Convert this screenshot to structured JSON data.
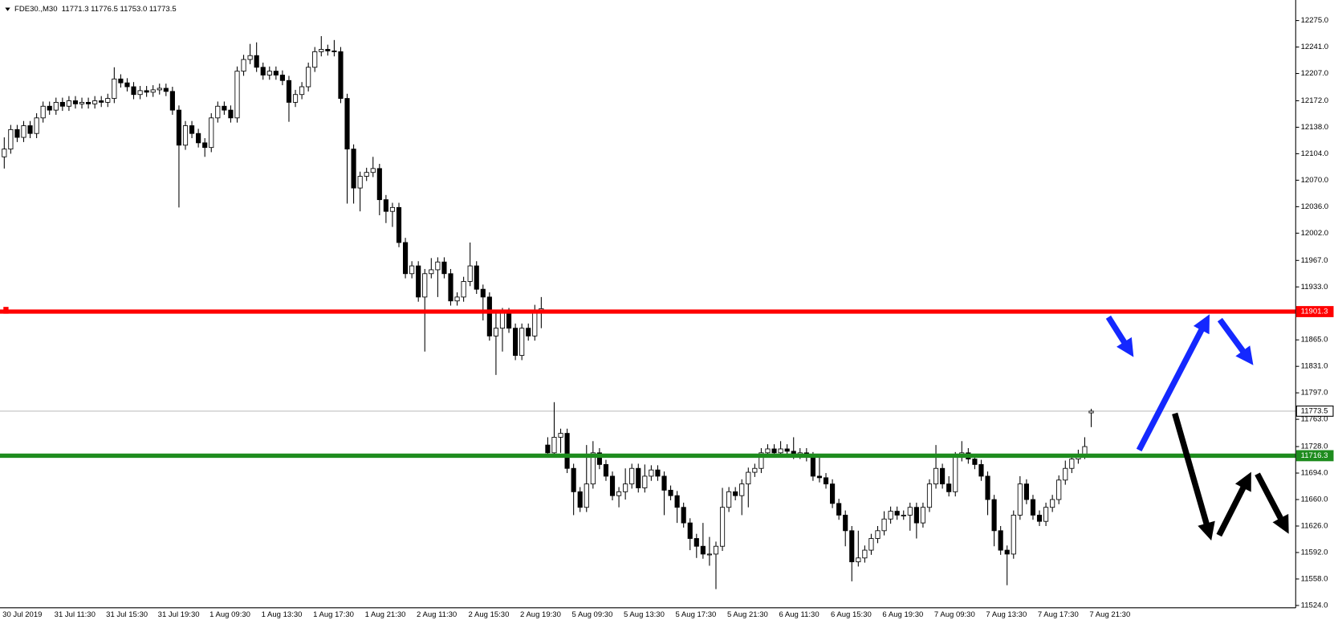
{
  "chart_data": {
    "type": "candlestick",
    "title": "FDE30.,M30  11771.3 11776.5 11753.0 11773.5",
    "up_color": "#ffffff",
    "down_color": "#000000",
    "ylim": [
      11521,
      12297
    ],
    "yticks": [
      {
        "value": 12275,
        "label": "12275.0"
      },
      {
        "value": 12241,
        "label": "12241.0"
      },
      {
        "value": 12207,
        "label": "12207.0"
      },
      {
        "value": 12172,
        "label": "12172.0"
      },
      {
        "value": 12138,
        "label": "12138.0"
      },
      {
        "value": 12104,
        "label": "12104.0"
      },
      {
        "value": 12070,
        "label": "12070.0"
      },
      {
        "value": 12036,
        "label": "12036.0"
      },
      {
        "value": 12002,
        "label": "12002.0"
      },
      {
        "value": 11967,
        "label": "11967.0"
      },
      {
        "value": 11933,
        "label": "11933.0"
      },
      {
        "value": 11865,
        "label": "11865.0"
      },
      {
        "value": 11831,
        "label": "11831.0"
      },
      {
        "value": 11797,
        "label": "11797.0"
      },
      {
        "value": 11763,
        "label": "11763.0"
      },
      {
        "value": 11728,
        "label": "11728.0"
      },
      {
        "value": 11694,
        "label": "11694.0"
      },
      {
        "value": 11660,
        "label": "11660.0"
      },
      {
        "value": 11626,
        "label": "11626.0"
      },
      {
        "value": 11592,
        "label": "11592.0"
      },
      {
        "value": 11558,
        "label": "11558.0"
      },
      {
        "value": 11524,
        "label": "11524.0"
      }
    ],
    "hlines": [
      {
        "value": 11773.5,
        "color": "#c0c0c0"
      },
      {
        "value": 11901.3,
        "color": "#ff0000"
      },
      {
        "value": 11716.3,
        "color": "#1e8c1e"
      }
    ],
    "categories": [
      "30 Jul 2019",
      null,
      null,
      null,
      null,
      null,
      null,
      null,
      "31 Jul 11:30",
      null,
      null,
      null,
      null,
      null,
      null,
      null,
      "31 Jul 15:30",
      null,
      null,
      null,
      null,
      null,
      null,
      null,
      "31 Jul 19:30",
      null,
      null,
      null,
      null,
      null,
      null,
      null,
      "1 Aug 09:30",
      null,
      null,
      null,
      null,
      null,
      null,
      null,
      "1 Aug 13:30",
      null,
      null,
      null,
      null,
      null,
      null,
      null,
      "1 Aug 17:30",
      null,
      null,
      null,
      null,
      null,
      null,
      null,
      "1 Aug 21:30",
      null,
      null,
      null,
      null,
      null,
      null,
      null,
      "2 Aug 11:30",
      null,
      null,
      null,
      null,
      null,
      null,
      null,
      "2 Aug 15:30",
      null,
      null,
      null,
      null,
      null,
      null,
      null,
      "2 Aug 19:30",
      null,
      null,
      null,
      null,
      null,
      null,
      null,
      "5 Aug 09:30",
      null,
      null,
      null,
      null,
      null,
      null,
      null,
      "5 Aug 13:30",
      null,
      null,
      null,
      null,
      null,
      null,
      null,
      "5 Aug 17:30",
      null,
      null,
      null,
      null,
      null,
      null,
      null,
      "5 Aug 21:30",
      null,
      null,
      null,
      null,
      null,
      null,
      null,
      "6 Aug 11:30",
      null,
      null,
      null,
      null,
      null,
      null,
      null,
      "6 Aug 15:30",
      null,
      null,
      null,
      null,
      null,
      null,
      null,
      "6 Aug 19:30",
      null,
      null,
      null,
      null,
      null,
      null,
      null,
      "7 Aug 09:30",
      null,
      null,
      null,
      null,
      null,
      null,
      null,
      "7 Aug 13:30",
      null,
      null,
      null,
      null,
      null,
      null,
      null,
      "7 Aug 17:30",
      null,
      null,
      null,
      null,
      null,
      null,
      null,
      "7 Aug 21:30"
    ],
    "candles": [
      [
        12100,
        12125,
        12085,
        12110
      ],
      [
        12110,
        12141,
        12104,
        12135
      ],
      [
        12135,
        12141,
        12119,
        12125
      ],
      [
        12125,
        12146,
        12119,
        12140
      ],
      [
        12140,
        12146,
        12124,
        12130
      ],
      [
        12130,
        12156,
        12124,
        12150
      ],
      [
        12150,
        12171,
        12144,
        12165
      ],
      [
        12165,
        12171,
        12154,
        12160
      ],
      [
        12160,
        12176,
        12154,
        12170
      ],
      [
        12170,
        12176,
        12159,
        12165
      ],
      [
        12165,
        12178,
        12159,
        12172
      ],
      [
        12172,
        12178,
        12162,
        12168
      ],
      [
        12168,
        12176,
        12162,
        12170
      ],
      [
        12170,
        12176,
        12162,
        12168
      ],
      [
        12168,
        12178,
        12162,
        12172
      ],
      [
        12172,
        12178,
        12164,
        12170
      ],
      [
        12170,
        12181,
        12164,
        12175
      ],
      [
        12175,
        12215,
        12169,
        12200
      ],
      [
        12200,
        12206,
        12189,
        12195
      ],
      [
        12195,
        12201,
        12184,
        12190
      ],
      [
        12190,
        12196,
        12174,
        12180
      ],
      [
        12180,
        12191,
        12174,
        12185
      ],
      [
        12185,
        12191,
        12177,
        12183
      ],
      [
        12183,
        12192,
        12177,
        12186
      ],
      [
        12186,
        12194,
        12180,
        12188
      ],
      [
        12188,
        12194,
        12178,
        12184
      ],
      [
        12184,
        12190,
        12154,
        12160
      ],
      [
        12160,
        12166,
        12035,
        12115
      ],
      [
        12115,
        12146,
        12109,
        12140
      ],
      [
        12140,
        12146,
        12124,
        12130
      ],
      [
        12130,
        12136,
        12112,
        12118
      ],
      [
        12118,
        12124,
        12100,
        12112
      ],
      [
        12112,
        12156,
        12106,
        12150
      ],
      [
        12150,
        12171,
        12144,
        12165
      ],
      [
        12165,
        12171,
        12154,
        12160
      ],
      [
        12160,
        12166,
        12144,
        12150
      ],
      [
        12150,
        12216,
        12144,
        12210
      ],
      [
        12210,
        12231,
        12204,
        12225
      ],
      [
        12225,
        12245,
        12219,
        12230
      ],
      [
        12230,
        12247,
        12209,
        12215
      ],
      [
        12215,
        12221,
        12199,
        12205
      ],
      [
        12205,
        12216,
        12199,
        12210
      ],
      [
        12210,
        12216,
        12199,
        12205
      ],
      [
        12205,
        12211,
        12192,
        12198
      ],
      [
        12198,
        12204,
        12145,
        12170
      ],
      [
        12170,
        12186,
        12164,
        12180
      ],
      [
        12180,
        12196,
        12174,
        12190
      ],
      [
        12190,
        12221,
        12184,
        12215
      ],
      [
        12215,
        12241,
        12209,
        12235
      ],
      [
        12235,
        12255,
        12229,
        12238
      ],
      [
        12238,
        12244,
        12230,
        12236
      ],
      [
        12236,
        12250,
        12229,
        12235
      ],
      [
        12235,
        12241,
        12169,
        12175
      ],
      [
        12175,
        12181,
        12040,
        12110
      ],
      [
        12110,
        12116,
        12040,
        12060
      ],
      [
        12060,
        12081,
        12030,
        12075
      ],
      [
        12075,
        12086,
        12069,
        12080
      ],
      [
        12080,
        12100,
        12074,
        12085
      ],
      [
        12085,
        12091,
        12025,
        12045
      ],
      [
        12045,
        12051,
        12015,
        12030
      ],
      [
        12030,
        12041,
        12010,
        12035
      ],
      [
        12035,
        12041,
        11984,
        11990
      ],
      [
        11990,
        11996,
        11944,
        11950
      ],
      [
        11950,
        11966,
        11944,
        11960
      ],
      [
        11960,
        11966,
        11914,
        11920
      ],
      [
        11920,
        11956,
        11850,
        11950
      ],
      [
        11950,
        11970,
        11944,
        11955
      ],
      [
        11955,
        11971,
        11920,
        11965
      ],
      [
        11965,
        11971,
        11944,
        11950
      ],
      [
        11950,
        11956,
        11909,
        11915
      ],
      [
        11915,
        11926,
        11909,
        11920
      ],
      [
        11920,
        11946,
        11914,
        11940
      ],
      [
        11940,
        11990,
        11934,
        11960
      ],
      [
        11960,
        11966,
        11924,
        11930
      ],
      [
        11930,
        11936,
        11890,
        11920
      ],
      [
        11920,
        11926,
        11864,
        11870
      ],
      [
        11870,
        11900,
        11820,
        11880
      ],
      [
        11880,
        11906,
        11850,
        11900
      ],
      [
        11900,
        11906,
        11874,
        11880
      ],
      [
        11880,
        11886,
        11839,
        11845
      ],
      [
        11845,
        11886,
        11839,
        11880
      ],
      [
        11880,
        11886,
        11864,
        11870
      ],
      [
        11870,
        11910,
        11864,
        11900
      ],
      [
        11900,
        11920,
        11880,
        11905
      ],
      [
        11730,
        11740,
        11714,
        11720
      ],
      [
        11720,
        11785,
        11714,
        11740
      ],
      [
        11740,
        11751,
        11720,
        11745
      ],
      [
        11745,
        11751,
        11694,
        11700
      ],
      [
        11700,
        11706,
        11640,
        11670
      ],
      [
        11670,
        11676,
        11644,
        11650
      ],
      [
        11650,
        11730,
        11644,
        11680
      ],
      [
        11680,
        11735,
        11674,
        11720
      ],
      [
        11720,
        11726,
        11699,
        11705
      ],
      [
        11705,
        11711,
        11684,
        11690
      ],
      [
        11690,
        11696,
        11659,
        11665
      ],
      [
        11665,
        11676,
        11650,
        11670
      ],
      [
        11670,
        11700,
        11660,
        11680
      ],
      [
        11680,
        11706,
        11674,
        11700
      ],
      [
        11700,
        11706,
        11669,
        11675
      ],
      [
        11675,
        11705,
        11669,
        11690
      ],
      [
        11690,
        11704,
        11684,
        11698
      ],
      [
        11698,
        11704,
        11684,
        11690
      ],
      [
        11690,
        11696,
        11640,
        11672
      ],
      [
        11672,
        11678,
        11659,
        11665
      ],
      [
        11665,
        11671,
        11630,
        11650
      ],
      [
        11650,
        11656,
        11624,
        11630
      ],
      [
        11630,
        11636,
        11595,
        11610
      ],
      [
        11610,
        11616,
        11585,
        11600
      ],
      [
        11600,
        11630,
        11584,
        11590
      ],
      [
        11590,
        11612,
        11575,
        11590
      ],
      [
        11590,
        11606,
        11545,
        11600
      ],
      [
        11600,
        11675,
        11594,
        11650
      ],
      [
        11650,
        11676,
        11644,
        11670
      ],
      [
        11670,
        11676,
        11659,
        11665
      ],
      [
        11665,
        11686,
        11640,
        11680
      ],
      [
        11680,
        11701,
        11650,
        11695
      ],
      [
        11695,
        11706,
        11689,
        11700
      ],
      [
        11700,
        11726,
        11694,
        11720
      ],
      [
        11720,
        11731,
        11714,
        11725
      ],
      [
        11725,
        11731,
        11714,
        11720
      ],
      [
        11720,
        11735,
        11714,
        11725
      ],
      [
        11725,
        11731,
        11716,
        11722
      ],
      [
        11722,
        11740,
        11712,
        11718
      ],
      [
        11718,
        11726,
        11712,
        11720
      ],
      [
        11720,
        11726,
        11709,
        11715
      ],
      [
        11715,
        11721,
        11684,
        11690
      ],
      [
        11690,
        11715,
        11682,
        11688
      ],
      [
        11688,
        11694,
        11674,
        11680
      ],
      [
        11680,
        11686,
        11649,
        11655
      ],
      [
        11655,
        11661,
        11634,
        11640
      ],
      [
        11640,
        11646,
        11600,
        11620
      ],
      [
        11620,
        11626,
        11555,
        11580
      ],
      [
        11580,
        11620,
        11574,
        11585
      ],
      [
        11585,
        11601,
        11579,
        11595
      ],
      [
        11595,
        11616,
        11589,
        11610
      ],
      [
        11610,
        11626,
        11604,
        11620
      ],
      [
        11620,
        11645,
        11614,
        11635
      ],
      [
        11635,
        11651,
        11629,
        11645
      ],
      [
        11645,
        11651,
        11634,
        11640
      ],
      [
        11640,
        11646,
        11634,
        11640
      ],
      [
        11640,
        11656,
        11620,
        11650
      ],
      [
        11650,
        11656,
        11610,
        11630
      ],
      [
        11630,
        11656,
        11624,
        11650
      ],
      [
        11650,
        11686,
        11644,
        11680
      ],
      [
        11680,
        11730,
        11674,
        11700
      ],
      [
        11700,
        11706,
        11674,
        11680
      ],
      [
        11680,
        11690,
        11664,
        11670
      ],
      [
        11670,
        11721,
        11664,
        11715
      ],
      [
        11715,
        11735,
        11709,
        11720
      ],
      [
        11720,
        11726,
        11706,
        11712
      ],
      [
        11712,
        11718,
        11699,
        11705
      ],
      [
        11705,
        11711,
        11684,
        11690
      ],
      [
        11690,
        11696,
        11640,
        11660
      ],
      [
        11660,
        11666,
        11600,
        11620
      ],
      [
        11620,
        11626,
        11589,
        11595
      ],
      [
        11595,
        11601,
        11550,
        11590
      ],
      [
        11590,
        11646,
        11584,
        11640
      ],
      [
        11640,
        11690,
        11634,
        11680
      ],
      [
        11680,
        11686,
        11654,
        11660
      ],
      [
        11660,
        11666,
        11634,
        11640
      ],
      [
        11640,
        11646,
        11626,
        11632
      ],
      [
        11632,
        11656,
        11626,
        11650
      ],
      [
        11650,
        11666,
        11644,
        11660
      ],
      [
        11660,
        11691,
        11654,
        11685
      ],
      [
        11685,
        11710,
        11679,
        11700
      ],
      [
        11700,
        11718,
        11694,
        11712
      ],
      [
        11712,
        11724,
        11706,
        11718
      ],
      [
        11718,
        11740,
        11712,
        11728
      ],
      [
        11771.3,
        11776.5,
        11753,
        11773.5
      ]
    ]
  }
}
